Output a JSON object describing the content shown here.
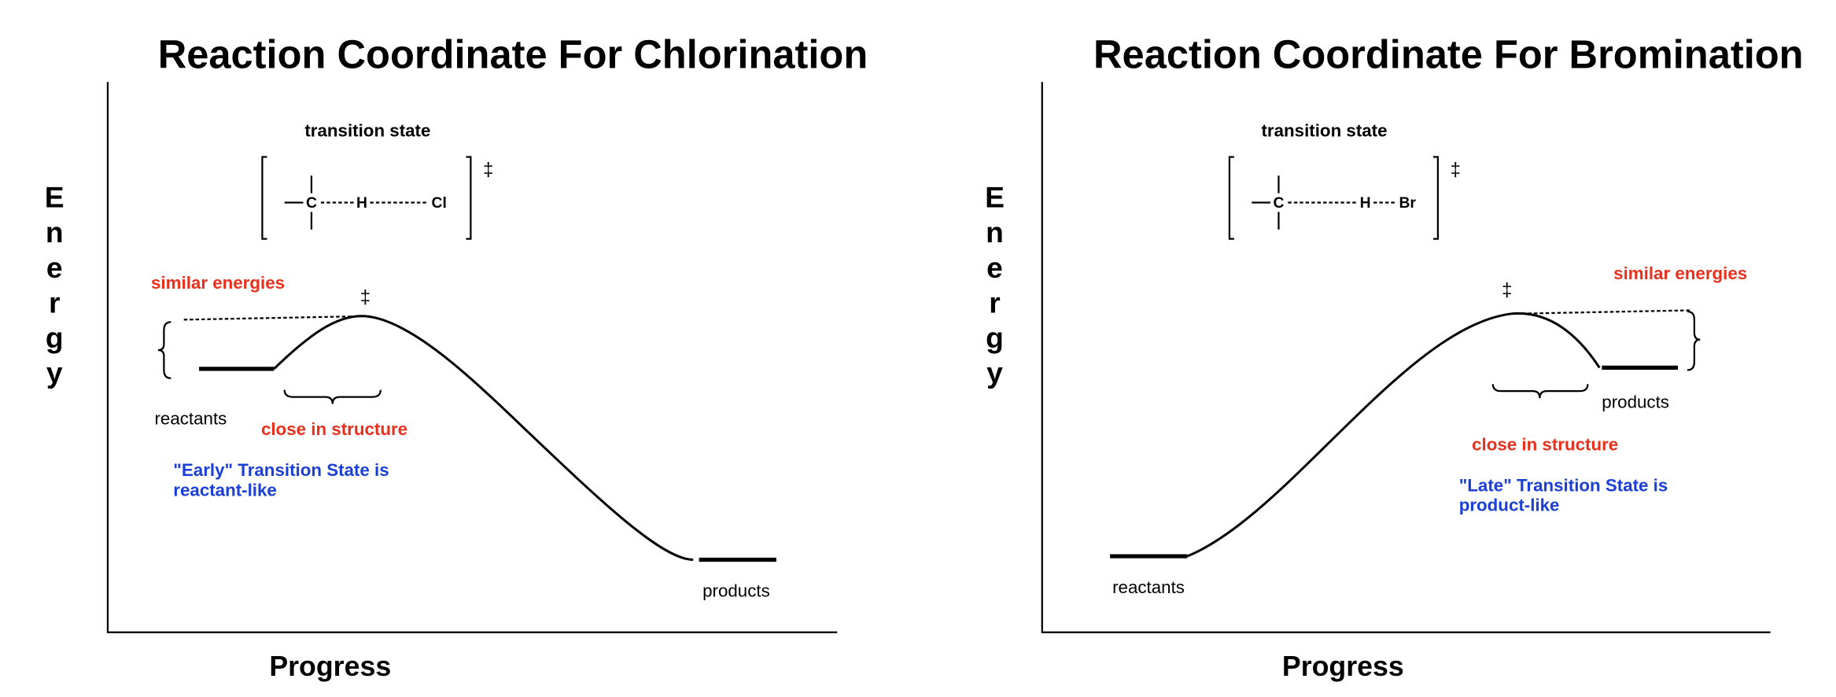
{
  "panels": [
    {
      "title": "Reaction Coordinate For Chlorination",
      "y_label": "Energy",
      "x_label": "Progress",
      "transition_state_label": "transition state",
      "dagger": "‡",
      "formula": {
        "carbon": "C",
        "hydrogen": "H",
        "halogen": "Cl"
      },
      "peak_dagger": "‡",
      "similar_label": "similar energies",
      "close_label": "close in structure",
      "reactants_label": "reactants",
      "products_label": "products",
      "note_lines": [
        "\"Early\" Transition State is",
        "reactant-like"
      ]
    },
    {
      "title": "Reaction Coordinate For Bromination",
      "y_label": "Energy",
      "x_label": "Progress",
      "transition_state_label": "transition state",
      "dagger": "‡",
      "formula": {
        "carbon": "C",
        "hydrogen": "H",
        "halogen": "Br"
      },
      "peak_dagger": "‡",
      "similar_label": "similar energies",
      "close_label": "close in structure",
      "reactants_label": "reactants",
      "products_label": "products",
      "note_lines": [
        "\"Late\" Transition State is",
        "product-like"
      ]
    }
  ]
}
